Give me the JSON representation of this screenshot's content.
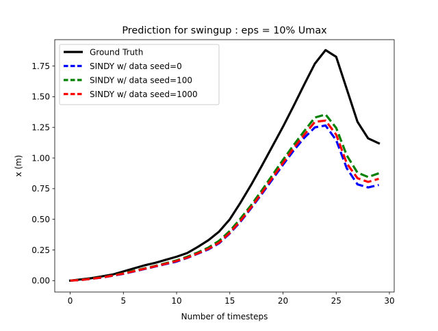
{
  "chart_data": {
    "type": "line",
    "title": "Prediction for swingup : eps = 10% Umax",
    "xlabel": "Number of timesteps",
    "ylabel": "x (m)",
    "xlim": [
      -1.45,
      30.45
    ],
    "ylim": [
      -0.093,
      1.965
    ],
    "xticks": [
      0,
      5,
      10,
      15,
      20,
      25,
      30
    ],
    "xtick_labels": [
      "0",
      "5",
      "10",
      "15",
      "20",
      "25",
      "30"
    ],
    "yticks": [
      0.0,
      0.25,
      0.5,
      0.75,
      1.0,
      1.25,
      1.5,
      1.75
    ],
    "ytick_labels": [
      "0.00",
      "0.25",
      "0.50",
      "0.75",
      "1.00",
      "1.25",
      "1.50",
      "1.75"
    ],
    "grid": false,
    "legend_position": "upper-left",
    "x": [
      0,
      1,
      2,
      3,
      4,
      5,
      6,
      7,
      8,
      9,
      10,
      11,
      12,
      13,
      14,
      15,
      16,
      17,
      18,
      19,
      20,
      21,
      22,
      23,
      24,
      25,
      26,
      27,
      28,
      29
    ],
    "series": [
      {
        "name": "Ground Truth",
        "color": "#000000",
        "style": "solid",
        "values": [
          0.0,
          0.01,
          0.02,
          0.035,
          0.05,
          0.075,
          0.1,
          0.125,
          0.145,
          0.17,
          0.195,
          0.225,
          0.275,
          0.33,
          0.4,
          0.5,
          0.635,
          0.78,
          0.935,
          1.095,
          1.255,
          1.425,
          1.6,
          1.77,
          1.88,
          1.825,
          1.56,
          1.295,
          1.16,
          1.12
        ]
      },
      {
        "name": "SINDY w/ data seed=0",
        "color": "#0000ff",
        "style": "dashed",
        "values": [
          0.0,
          0.005,
          0.015,
          0.025,
          0.04,
          0.055,
          0.075,
          0.095,
          0.115,
          0.135,
          0.155,
          0.185,
          0.22,
          0.255,
          0.305,
          0.385,
          0.48,
          0.59,
          0.705,
          0.825,
          0.945,
          1.06,
          1.165,
          1.25,
          1.265,
          1.145,
          0.915,
          0.785,
          0.76,
          0.78
        ]
      },
      {
        "name": "SINDY w/ data seed=100",
        "color": "#008000",
        "style": "dashed",
        "values": [
          0.0,
          0.006,
          0.016,
          0.027,
          0.043,
          0.06,
          0.08,
          0.1,
          0.12,
          0.142,
          0.165,
          0.195,
          0.23,
          0.27,
          0.325,
          0.405,
          0.505,
          0.615,
          0.735,
          0.86,
          0.985,
          1.105,
          1.22,
          1.33,
          1.355,
          1.245,
          1.02,
          0.88,
          0.845,
          0.875
        ]
      },
      {
        "name": "SINDY w/ data seed=1000",
        "color": "#ff0000",
        "style": "dashed",
        "values": [
          0.0,
          0.005,
          0.015,
          0.026,
          0.041,
          0.057,
          0.077,
          0.097,
          0.117,
          0.138,
          0.16,
          0.188,
          0.223,
          0.26,
          0.31,
          0.39,
          0.487,
          0.597,
          0.715,
          0.838,
          0.96,
          1.08,
          1.19,
          1.295,
          1.305,
          1.19,
          0.955,
          0.835,
          0.805,
          0.83
        ]
      }
    ]
  }
}
